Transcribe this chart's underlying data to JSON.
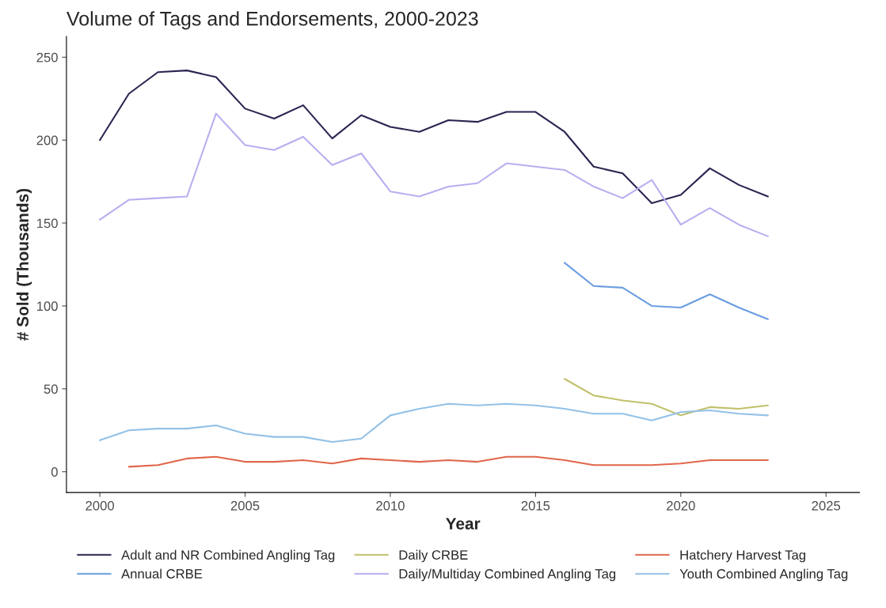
{
  "chart_data": {
    "type": "line",
    "title": "Volume of Tags and Endorsements, 2000-2023",
    "xlabel": "Year",
    "ylabel": "# Sold (Thousands)",
    "x": [
      2000,
      2001,
      2002,
      2003,
      2004,
      2005,
      2006,
      2007,
      2008,
      2009,
      2010,
      2011,
      2012,
      2013,
      2014,
      2015,
      2016,
      2017,
      2018,
      2019,
      2020,
      2021,
      2022,
      2023
    ],
    "xlim": [
      1998.85,
      2026.15
    ],
    "xticks": [
      2000,
      2005,
      2010,
      2015,
      2020,
      2025
    ],
    "ylim": [
      -12.5,
      262.5
    ],
    "yticks": [
      0,
      50,
      100,
      150,
      200,
      250
    ],
    "grid": false,
    "legend": "bottom",
    "line_style": "solid",
    "marker": "none",
    "series": [
      {
        "name": "Adult and NR Combined Angling Tag",
        "color": "#2b2451",
        "values": [
          200,
          228,
          241,
          242,
          238,
          219,
          213,
          221,
          201,
          215,
          208,
          205,
          212,
          211,
          217,
          217,
          205,
          184,
          180,
          162,
          167,
          183,
          173,
          166
        ]
      },
      {
        "name": "Annual CRBE",
        "color": "#6a9de0",
        "values": [
          null,
          null,
          null,
          null,
          null,
          null,
          null,
          null,
          null,
          null,
          null,
          null,
          null,
          null,
          null,
          null,
          126,
          112,
          111,
          100,
          99,
          107,
          99,
          92
        ]
      },
      {
        "name": "Daily CRBE",
        "color": "#c0c06a",
        "values": [
          null,
          null,
          null,
          null,
          null,
          null,
          null,
          null,
          null,
          null,
          null,
          null,
          null,
          null,
          null,
          null,
          56,
          46,
          43,
          41,
          34,
          39,
          38,
          40
        ]
      },
      {
        "name": "Daily/Multiday Combined Angling Tag",
        "color": "#b9aef0",
        "values": [
          152,
          164,
          165,
          166,
          216,
          197,
          194,
          202,
          185,
          192,
          169,
          166,
          172,
          174,
          186,
          184,
          182,
          172,
          165,
          176,
          149,
          159,
          149,
          142
        ]
      },
      {
        "name": "Hatchery Harvest Tag",
        "color": "#e0664a",
        "values": [
          null,
          3,
          4,
          8,
          9,
          6,
          6,
          7,
          5,
          8,
          7,
          6,
          7,
          6,
          9,
          9,
          7,
          4,
          4,
          4,
          5,
          7,
          7,
          7
        ]
      },
      {
        "name": "Youth Combined Angling Tag",
        "color": "#93c1e6",
        "values": [
          19,
          25,
          26,
          26,
          28,
          23,
          21,
          21,
          18,
          20,
          34,
          38,
          41,
          40,
          41,
          40,
          38,
          35,
          35,
          31,
          36,
          37,
          35,
          34
        ]
      }
    ]
  }
}
